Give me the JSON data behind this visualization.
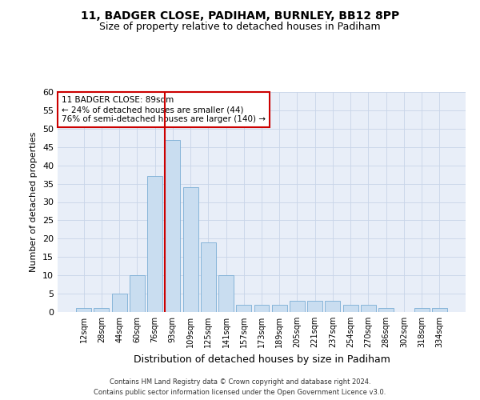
{
  "title": "11, BADGER CLOSE, PADIHAM, BURNLEY, BB12 8PP",
  "subtitle": "Size of property relative to detached houses in Padiham",
  "xlabel": "Distribution of detached houses by size in Padiham",
  "ylabel": "Number of detached properties",
  "footer_line1": "Contains HM Land Registry data © Crown copyright and database right 2024.",
  "footer_line2": "Contains public sector information licensed under the Open Government Licence v3.0.",
  "bar_labels": [
    "12sqm",
    "28sqm",
    "44sqm",
    "60sqm",
    "76sqm",
    "93sqm",
    "109sqm",
    "125sqm",
    "141sqm",
    "157sqm",
    "173sqm",
    "189sqm",
    "205sqm",
    "221sqm",
    "237sqm",
    "254sqm",
    "270sqm",
    "286sqm",
    "302sqm",
    "318sqm",
    "334sqm"
  ],
  "bar_values": [
    1,
    1,
    5,
    10,
    37,
    47,
    34,
    19,
    10,
    2,
    2,
    2,
    3,
    3,
    3,
    2,
    2,
    1,
    0,
    1,
    1
  ],
  "bar_color": "#c9ddf0",
  "bar_edge_color": "#7aadd4",
  "vline_x": 4.575,
  "vline_color": "#cc0000",
  "annotation_text": "11 BADGER CLOSE: 89sqm\n← 24% of detached houses are smaller (44)\n76% of semi-detached houses are larger (140) →",
  "annotation_box_color": "#ffffff",
  "annotation_box_edgecolor": "#cc0000",
  "ylim": [
    0,
    60
  ],
  "yticks": [
    0,
    5,
    10,
    15,
    20,
    25,
    30,
    35,
    40,
    45,
    50,
    55,
    60
  ],
  "grid_color": "#c8d4e8",
  "background_color": "#e8eef8",
  "title_fontsize": 10,
  "subtitle_fontsize": 9,
  "bar_fontsize": 7,
  "ylabel_fontsize": 8,
  "xlabel_fontsize": 9,
  "footer_fontsize": 6
}
